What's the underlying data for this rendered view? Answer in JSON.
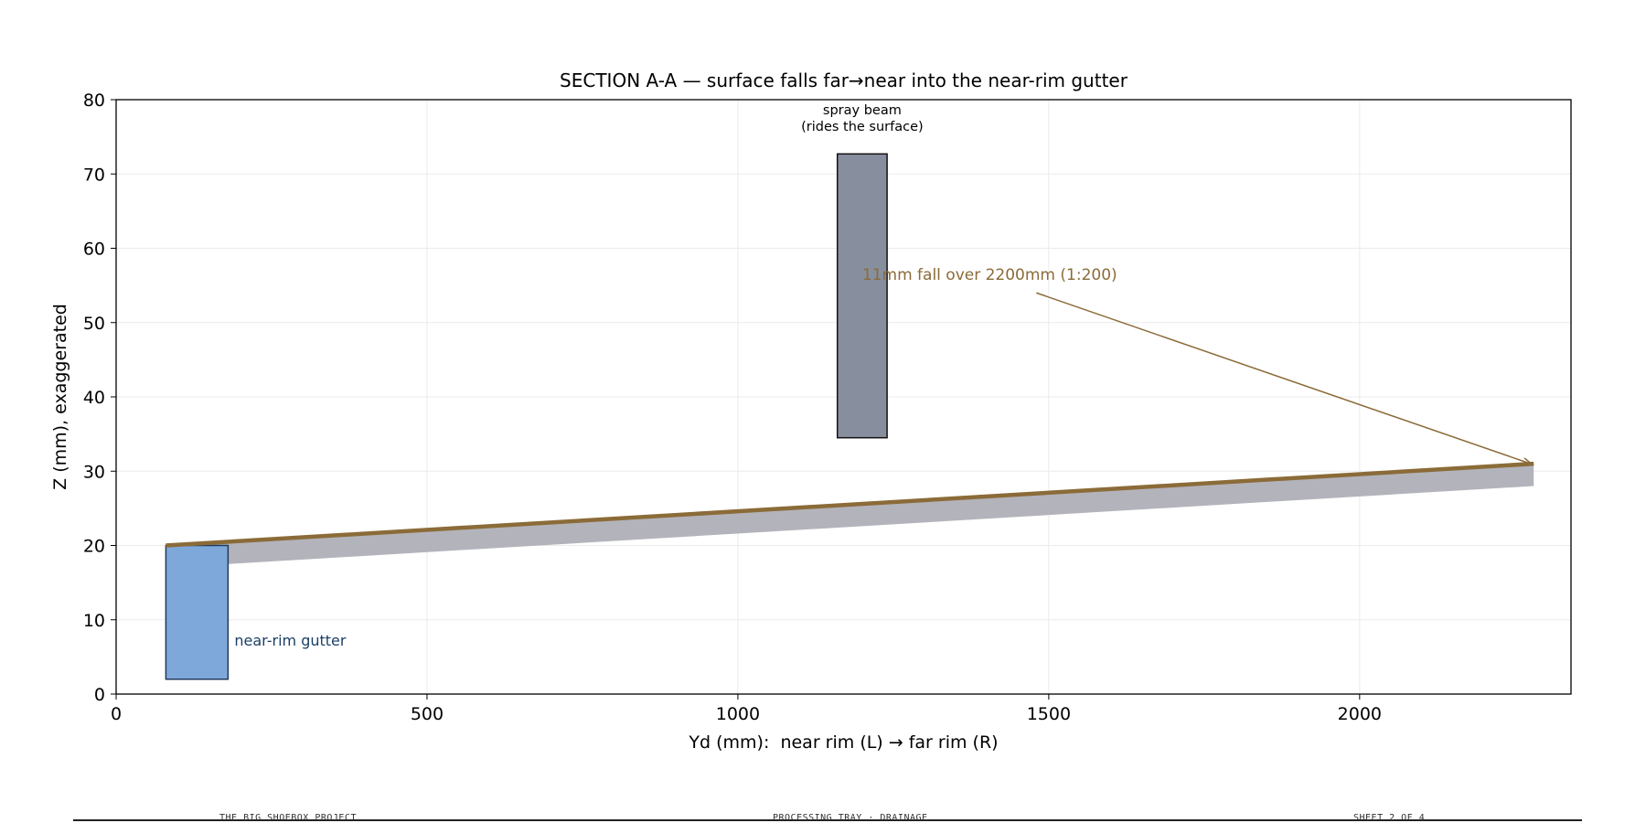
{
  "chart_data": {
    "type": "diagram",
    "title": "SECTION A-A — surface falls far→near into the near-rim gutter",
    "xlabel": "Yd (mm):  near rim (L) → far rim (R)",
    "ylabel": "Z (mm), exaggerated",
    "xlim": [
      0,
      2340
    ],
    "ylim": [
      0,
      80
    ],
    "xticks": [
      0,
      500,
      1000,
      1500,
      2000
    ],
    "yticks": [
      0,
      10,
      20,
      30,
      40,
      50,
      60,
      70,
      80
    ],
    "grid": true,
    "surface": {
      "x": [
        80,
        2280
      ],
      "z": [
        20,
        31
      ],
      "color": "#8b6b38"
    },
    "slab": {
      "x": [
        80,
        2280
      ],
      "top": [
        20,
        31
      ],
      "bottom": [
        17,
        28
      ],
      "color": "#b3b3bb"
    },
    "gutter": {
      "x": [
        80,
        180
      ],
      "z": [
        2,
        20
      ],
      "label": "near-rim gutter",
      "color": "#7fa8da",
      "label_color": "#1a3f66"
    },
    "spray_beam": {
      "x": [
        1160,
        1240
      ],
      "z": [
        34.5,
        72.7
      ],
      "label_line1": "spray beam",
      "label_line2": "(rides the surface)",
      "color": "#878f9e"
    },
    "annotation": {
      "text": "11mm fall over 2200mm (1:200)",
      "text_x": 1200,
      "text_z": 55.5,
      "arrow_from": [
        1480,
        54
      ],
      "arrow_to": [
        2275,
        31
      ],
      "color": "#8b6b38"
    }
  },
  "footer": {
    "left": "THE BIG SHOEBOX PROJECT",
    "center": "PROCESSING TRAY · DRAINAGE",
    "right": "SHEET 2 OF 4"
  }
}
